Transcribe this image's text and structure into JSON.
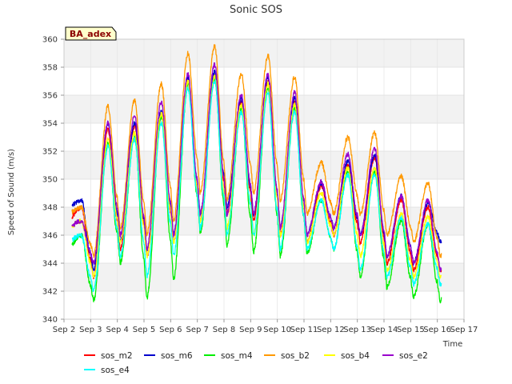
{
  "chart_data": {
    "type": "line",
    "title": "Sonic SOS",
    "xlabel": "Time",
    "ylabel": "Speed of Sound (m/s)",
    "badge": "BA_adex",
    "ylim": [
      340,
      360
    ],
    "yticks": [
      340,
      342,
      344,
      346,
      348,
      350,
      352,
      354,
      356,
      358,
      360
    ],
    "xlim": [
      2,
      17
    ],
    "xticks": [
      2,
      3,
      4,
      5,
      6,
      7,
      8,
      9,
      10,
      11,
      12,
      13,
      14,
      15,
      16,
      17
    ],
    "xtick_labels": [
      "Sep 2",
      "Sep 3",
      "Sep 4",
      "Sep 5",
      "Sep 6",
      "Sep 7",
      "Sep 8",
      "Sep 9",
      "Sep 10",
      "Sep 11",
      "Sep 12",
      "Sep 13",
      "Sep 14",
      "Sep 15",
      "Sep 16",
      "Sep 17"
    ],
    "days": [
      2.3,
      3.0,
      4.0,
      5.0,
      6.0,
      7.0,
      8.0,
      9.0,
      10.0,
      11.0,
      12.0,
      13.0,
      14.0,
      15.0,
      16.0
    ],
    "series": [
      {
        "name": "sos_m2",
        "color": "#ff0000",
        "min": [
          347.0,
          343.0,
          345.0,
          344.5,
          345.5,
          347.0,
          347.5,
          347.0,
          346.0,
          345.5,
          346.0,
          345.5,
          344.0,
          343.5,
          343.5
        ],
        "max": [
          348.0,
          353.5,
          353.8,
          354.5,
          357.0,
          357.5,
          355.5,
          357.0,
          355.5,
          349.5,
          351.0,
          351.5,
          348.5,
          348.0,
          348.0
        ]
      },
      {
        "name": "sos_m6",
        "color": "#0000cc",
        "min": [
          348.0,
          343.5,
          345.5,
          345.0,
          346.0,
          347.5,
          348.0,
          347.5,
          346.5,
          346.0,
          346.5,
          346.0,
          344.5,
          344.0,
          345.5
        ],
        "max": [
          348.5,
          354.0,
          354.0,
          354.8,
          357.3,
          357.7,
          355.7,
          357.3,
          355.8,
          349.7,
          351.3,
          351.7,
          348.8,
          348.3,
          348.7
        ]
      },
      {
        "name": "sos_m4",
        "color": "#00ee00",
        "min": [
          345.0,
          341.3,
          344.0,
          341.5,
          342.8,
          346.2,
          345.3,
          344.8,
          344.5,
          344.7,
          345.0,
          343.0,
          342.3,
          341.6,
          341.3
        ],
        "max": [
          346.0,
          352.5,
          353.0,
          354.5,
          356.8,
          357.2,
          355.0,
          356.5,
          355.0,
          348.5,
          350.5,
          350.5,
          347.0,
          346.8,
          346.5
        ]
      },
      {
        "name": "sos_b2",
        "color": "#ff9900",
        "min": [
          347.5,
          344.5,
          346.5,
          346.0,
          347.0,
          349.0,
          348.5,
          349.0,
          348.5,
          347.5,
          347.5,
          347.5,
          346.0,
          345.5,
          344.5
        ],
        "max": [
          348.0,
          355.2,
          355.6,
          356.8,
          359.0,
          359.5,
          357.5,
          358.8,
          357.3,
          351.2,
          353.0,
          353.3,
          350.2,
          349.7,
          349.3
        ]
      },
      {
        "name": "sos_b4",
        "color": "#ffff00",
        "min": [
          346.5,
          343.0,
          345.5,
          344.5,
          345.5,
          347.0,
          346.5,
          346.0,
          346.0,
          345.5,
          346.0,
          344.5,
          343.5,
          343.0,
          343.0
        ],
        "max": [
          347.0,
          352.8,
          353.3,
          354.7,
          357.0,
          357.3,
          355.3,
          356.8,
          355.3,
          349.0,
          350.8,
          350.8,
          347.5,
          347.3,
          347.0
        ]
      },
      {
        "name": "sos_e2",
        "color": "#9900cc",
        "min": [
          346.5,
          344.0,
          346.0,
          345.0,
          346.0,
          347.5,
          347.5,
          347.5,
          346.5,
          346.0,
          346.5,
          346.0,
          344.5,
          344.0,
          343.5
        ],
        "max": [
          347.0,
          354.0,
          354.5,
          355.5,
          357.5,
          358.2,
          356.0,
          357.5,
          356.2,
          349.8,
          351.8,
          352.2,
          348.8,
          348.5,
          348.3
        ]
      },
      {
        "name": "sos_e4",
        "color": "#00ffff",
        "min": [
          345.5,
          342.0,
          344.5,
          343.0,
          344.5,
          346.5,
          346.0,
          346.0,
          345.0,
          345.0,
          345.0,
          343.5,
          343.0,
          342.5,
          342.5
        ],
        "max": [
          346.0,
          352.3,
          352.8,
          354.0,
          356.5,
          357.0,
          354.8,
          356.2,
          354.8,
          348.5,
          350.3,
          350.3,
          347.3,
          346.8,
          346.8
        ]
      }
    ]
  }
}
